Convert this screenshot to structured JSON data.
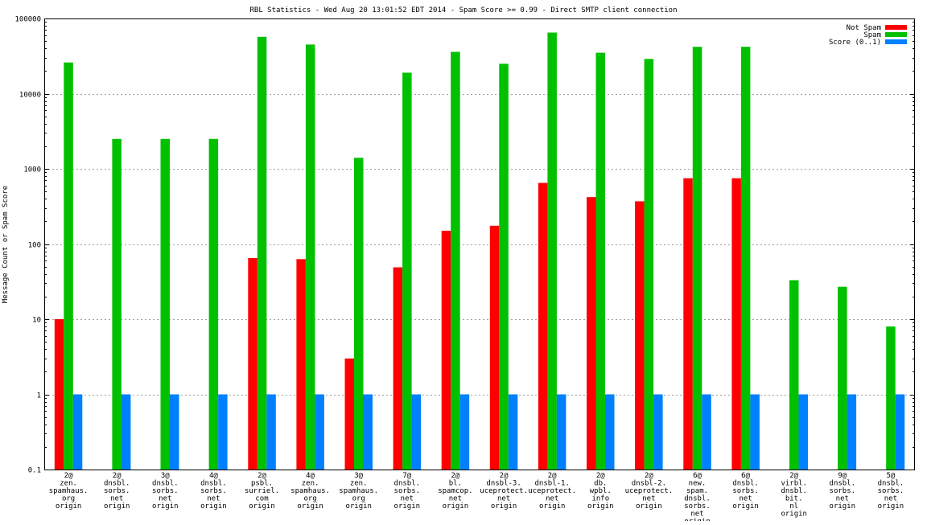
{
  "chart_data": {
    "type": "bar",
    "title": "RBL Statistics - Wed Aug 20 13:01:52 EDT 2014 - Spam Score >= 0.99 - Direct SMTP client connection",
    "xlabel": "",
    "ylabel": "Message Count or Spam Score",
    "yscale": "log",
    "ylim": [
      0.1,
      100000
    ],
    "grid": true,
    "legend_position": "top-right",
    "y_ticks": [
      "0.1",
      "1",
      "10",
      "100",
      "1000",
      "10000",
      "100000"
    ],
    "categories": [
      [
        "2@",
        "zen.",
        "spamhaus.",
        "org",
        "origin"
      ],
      [
        "2@",
        "dnsbl.",
        "sorbs.",
        "net",
        "origin"
      ],
      [
        "3@",
        "dnsbl.",
        "sorbs.",
        "net",
        "origin"
      ],
      [
        "4@",
        "dnsbl.",
        "sorbs.",
        "net",
        "origin"
      ],
      [
        "2@",
        "psbl.",
        "surriel.",
        "com",
        "origin"
      ],
      [
        "4@",
        "zen.",
        "spamhaus.",
        "org",
        "origin"
      ],
      [
        "3@",
        "zen.",
        "spamhaus.",
        "org",
        "origin"
      ],
      [
        "7@",
        "dnsbl.",
        "sorbs.",
        "net",
        "origin"
      ],
      [
        "2@",
        "bl.",
        "spamcop.",
        "net",
        "origin"
      ],
      [
        "2@",
        "dnsbl-3.",
        "uceprotect.",
        "net",
        "origin"
      ],
      [
        "2@",
        "dnsbl-1.",
        "uceprotect.",
        "net",
        "origin"
      ],
      [
        "2@",
        "db.",
        "wpbl.",
        "info",
        "origin"
      ],
      [
        "2@",
        "dnsbl-2.",
        "uceprotect.",
        "net",
        "origin"
      ],
      [
        "6@",
        "new.",
        "spam.",
        "dnsbl.",
        "sorbs.",
        "net",
        "origin"
      ],
      [
        "6@",
        "dnsbl.",
        "sorbs.",
        "net",
        "origin"
      ],
      [
        "2@",
        "virbl.",
        "dnsbl.",
        "bit.",
        "nl",
        "origin"
      ],
      [
        "9@",
        "dnsbl.",
        "sorbs.",
        "net",
        "origin"
      ],
      [
        "5@",
        "dnsbl.",
        "sorbs.",
        "net",
        "origin"
      ]
    ],
    "series": [
      {
        "name": "Not Spam",
        "color": "#ff0000",
        "values": [
          10,
          null,
          null,
          null,
          65,
          63,
          3,
          49,
          150,
          175,
          650,
          420,
          370,
          750,
          750,
          null,
          null,
          null
        ]
      },
      {
        "name": "Spam",
        "color": "#00c000",
        "values": [
          26000,
          2500,
          2500,
          2500,
          57000,
          45000,
          1400,
          19000,
          36000,
          25000,
          65000,
          35000,
          29000,
          42000,
          42000,
          33,
          27,
          8
        ]
      },
      {
        "name": "Score (0..1)",
        "color": "#0080ff",
        "values": [
          1,
          1,
          1,
          1,
          1,
          1,
          1,
          1,
          1,
          1,
          1,
          1,
          1,
          1,
          1,
          1,
          1,
          1
        ]
      }
    ]
  }
}
